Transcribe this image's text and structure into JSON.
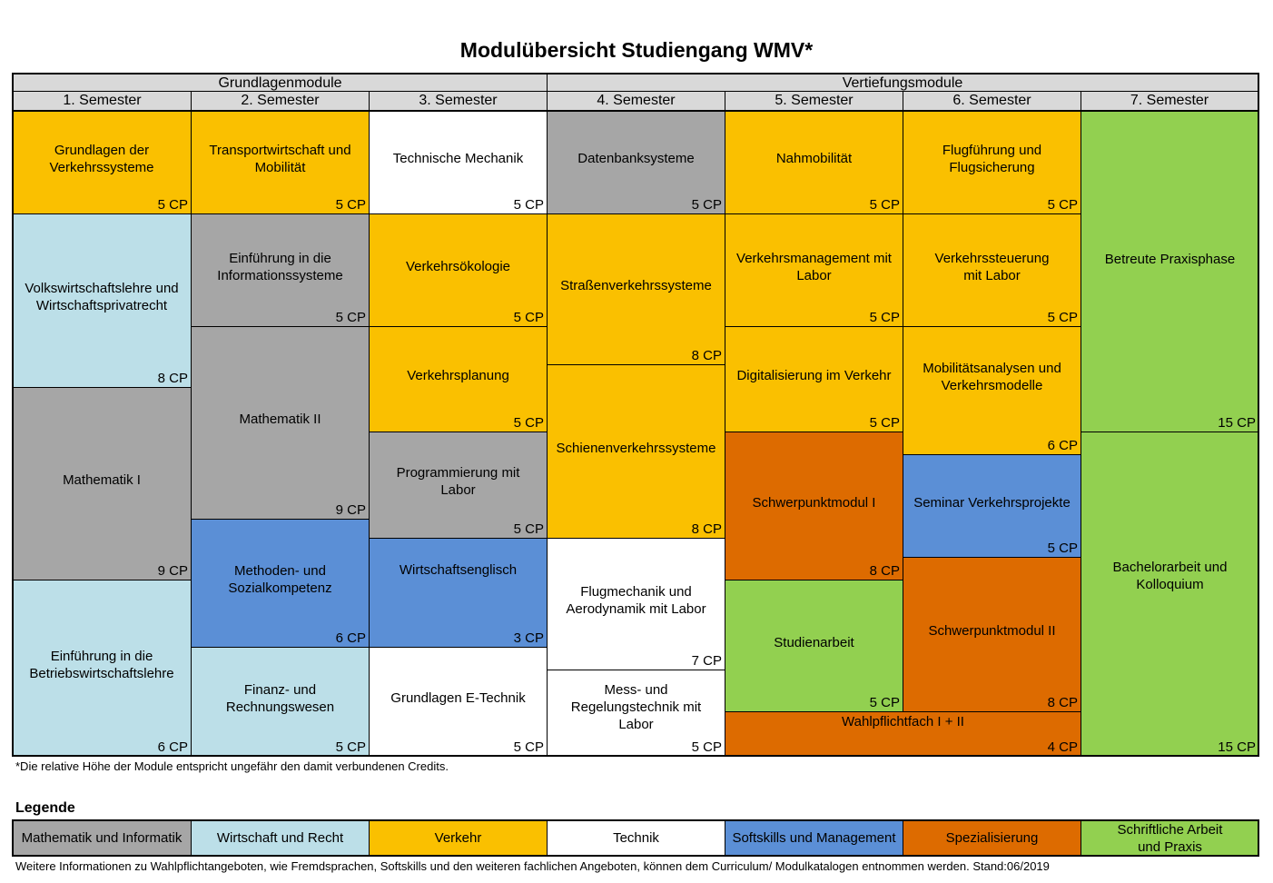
{
  "title": "Modulübersicht Studiengang WMV*",
  "groups": [
    {
      "label": "Grundlagenmodule"
    },
    {
      "label": "Vertiefungsmodule"
    }
  ],
  "semesters": [
    "1. Semester",
    "2. Semester",
    "3. Semester",
    "4. Semester",
    "5. Semester",
    "6. Semester",
    "7. Semester"
  ],
  "modules": {
    "s1": [
      {
        "name": "Grundlagen der Verkehrssysteme",
        "cp": "5 CP",
        "category": "verkehr"
      },
      {
        "name": "Volkswirtschaftslehre und Wirtschaftsprivatrecht",
        "cp": "8 CP",
        "category": "wirtschaft"
      },
      {
        "name": "Mathematik I",
        "cp": "9 CP",
        "category": "mathematik"
      },
      {
        "name": "Einführung in die Betriebswirtschaftslehre",
        "cp": "6 CP",
        "category": "wirtschaft"
      }
    ],
    "s2": [
      {
        "name": "Transportwirtschaft und Mobilität",
        "cp": "5 CP",
        "category": "verkehr"
      },
      {
        "name": "Einführung in die Informationssysteme",
        "cp": "5 CP",
        "category": "mathematik"
      },
      {
        "name": "Mathematik II",
        "cp": "9 CP",
        "category": "mathematik"
      },
      {
        "name": "Methoden- und Sozialkompetenz",
        "cp": "6 CP",
        "category": "softskills"
      },
      {
        "name": "Finanz- und Rechnungswesen",
        "cp": "5 CP",
        "category": "wirtschaft"
      }
    ],
    "s3": [
      {
        "name": "Technische Mechanik",
        "cp": "5 CP",
        "category": "technik"
      },
      {
        "name": "Verkehrsökologie",
        "cp": "5 CP",
        "category": "verkehr"
      },
      {
        "name": "Verkehrsplanung",
        "cp": "5 CP",
        "category": "verkehr"
      },
      {
        "name": "Programmierung  mit Labor",
        "cp": "5 CP",
        "category": "mathematik"
      },
      {
        "name": "Wirtschaftsenglisch",
        "cp": "3 CP",
        "category": "softskills"
      },
      {
        "name": "Grundlagen E-Technik",
        "cp": "5 CP",
        "category": "technik"
      }
    ],
    "s4": [
      {
        "name": "Datenbanksysteme",
        "cp": "5 CP",
        "category": "mathematik"
      },
      {
        "name": "Straßenverkehrssysteme",
        "cp": "8 CP",
        "category": "verkehr"
      },
      {
        "name": "Schienenverkehrssysteme",
        "cp": "8 CP",
        "category": "verkehr"
      },
      {
        "name": "Flugmechanik und Aerodynamik mit Labor",
        "cp": "7 CP",
        "category": "technik"
      },
      {
        "name": "Mess- und Regelungstechnik mit Labor",
        "cp": "5 CP",
        "category": "technik"
      }
    ],
    "s5": [
      {
        "name": "Nahmobilität",
        "cp": "5 CP",
        "category": "verkehr"
      },
      {
        "name": "Verkehrsmanagement mit Labor",
        "cp": "5 CP",
        "category": "verkehr"
      },
      {
        "name": "Digitalisierung im Verkehr",
        "cp": "5 CP",
        "category": "verkehr"
      },
      {
        "name": "Schwerpunktmodul I",
        "cp": "8 CP",
        "category": "spezialisierung"
      },
      {
        "name": "Studienarbeit",
        "cp": "5 CP",
        "category": "schriftlich"
      }
    ],
    "s6": [
      {
        "name": "Flugführung und Flugsicherung",
        "cp": "5 CP",
        "category": "verkehr"
      },
      {
        "name": "Verkehrssteuerung mit Labor",
        "cp": "5 CP",
        "category": "verkehr"
      },
      {
        "name": "Mobilitätsanalysen und Verkehrsmodelle",
        "cp": "6 CP",
        "category": "verkehr"
      },
      {
        "name": "Seminar Verkehrsprojekte",
        "cp": "5 CP",
        "category": "softskills"
      },
      {
        "name": "Schwerpunktmodul II",
        "cp": "8 CP",
        "category": "spezialisierung"
      }
    ],
    "s56": [
      {
        "name": "Wahlpflichtfach I + II",
        "cp": "4 CP",
        "category": "spezialisierung"
      }
    ],
    "s7": [
      {
        "name": "Betreute Praxisphase",
        "cp": "15 CP",
        "category": "schriftlich"
      },
      {
        "name": "Bachelorarbeit und Kolloquium",
        "cp": "15 CP",
        "category": "schriftlich"
      }
    ]
  },
  "footnote": "*Die relative Höhe der Module entspricht ungefähr den damit verbundenen Credits.",
  "legend_title": "Legende",
  "legend": [
    {
      "label": "Mathematik und Informatik",
      "color": "#a6a6a6"
    },
    {
      "label": "Wirtschaft und Recht",
      "color": "#bcdfe8"
    },
    {
      "label": "Verkehr",
      "color": "#fac000"
    },
    {
      "label": "Technik",
      "color": "#ffffff"
    },
    {
      "label": "Softskills und Management",
      "color": "#5b8fd6"
    },
    {
      "label": "Spezialisierung",
      "color": "#dd6b00"
    },
    {
      "label": "Schriftliche Arbeit und Praxis",
      "color": "#92d050"
    }
  ],
  "bottom_note": "Weitere Informationen zu Wahlpflichtangeboten, wie Fremdsprachen, Softskills und den weiteren fachlichen Angeboten, können dem Curriculum/ Modulkatalogen entnommen werden. Stand:06/2019"
}
